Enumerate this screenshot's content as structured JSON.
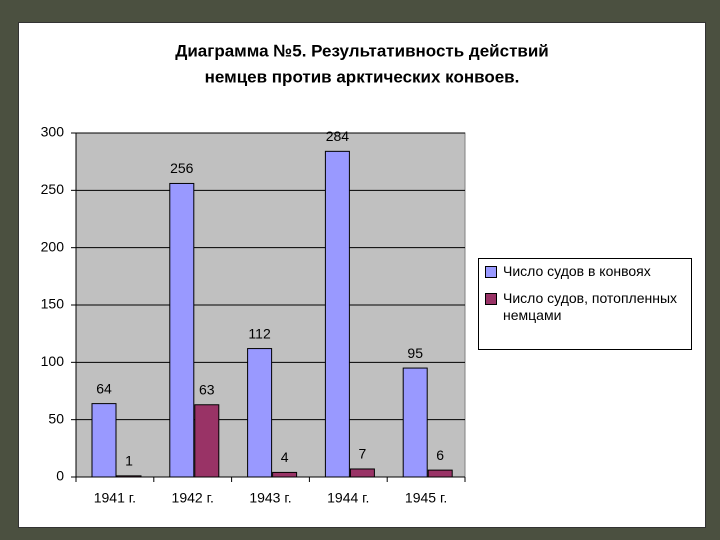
{
  "chart_data": {
    "type": "bar",
    "title": [
      "Диаграмма №5. Результативность действий",
      "немцев против арктических конвоев."
    ],
    "categories": [
      "1941 г.",
      "1942 г.",
      "1943 г.",
      "1944 г.",
      "1945 г."
    ],
    "series": [
      {
        "name": "Число судов в конвоях",
        "color": "#9999ff",
        "values": [
          64,
          256,
          112,
          284,
          95
        ]
      },
      {
        "name": "Число судов, потопленных немцами",
        "color": "#993366",
        "values": [
          1,
          63,
          4,
          7,
          6
        ]
      }
    ],
    "ylim": [
      0,
      300
    ],
    "yticks": [
      0,
      50,
      100,
      150,
      200,
      250,
      300
    ],
    "grid": true,
    "legend": "right"
  }
}
